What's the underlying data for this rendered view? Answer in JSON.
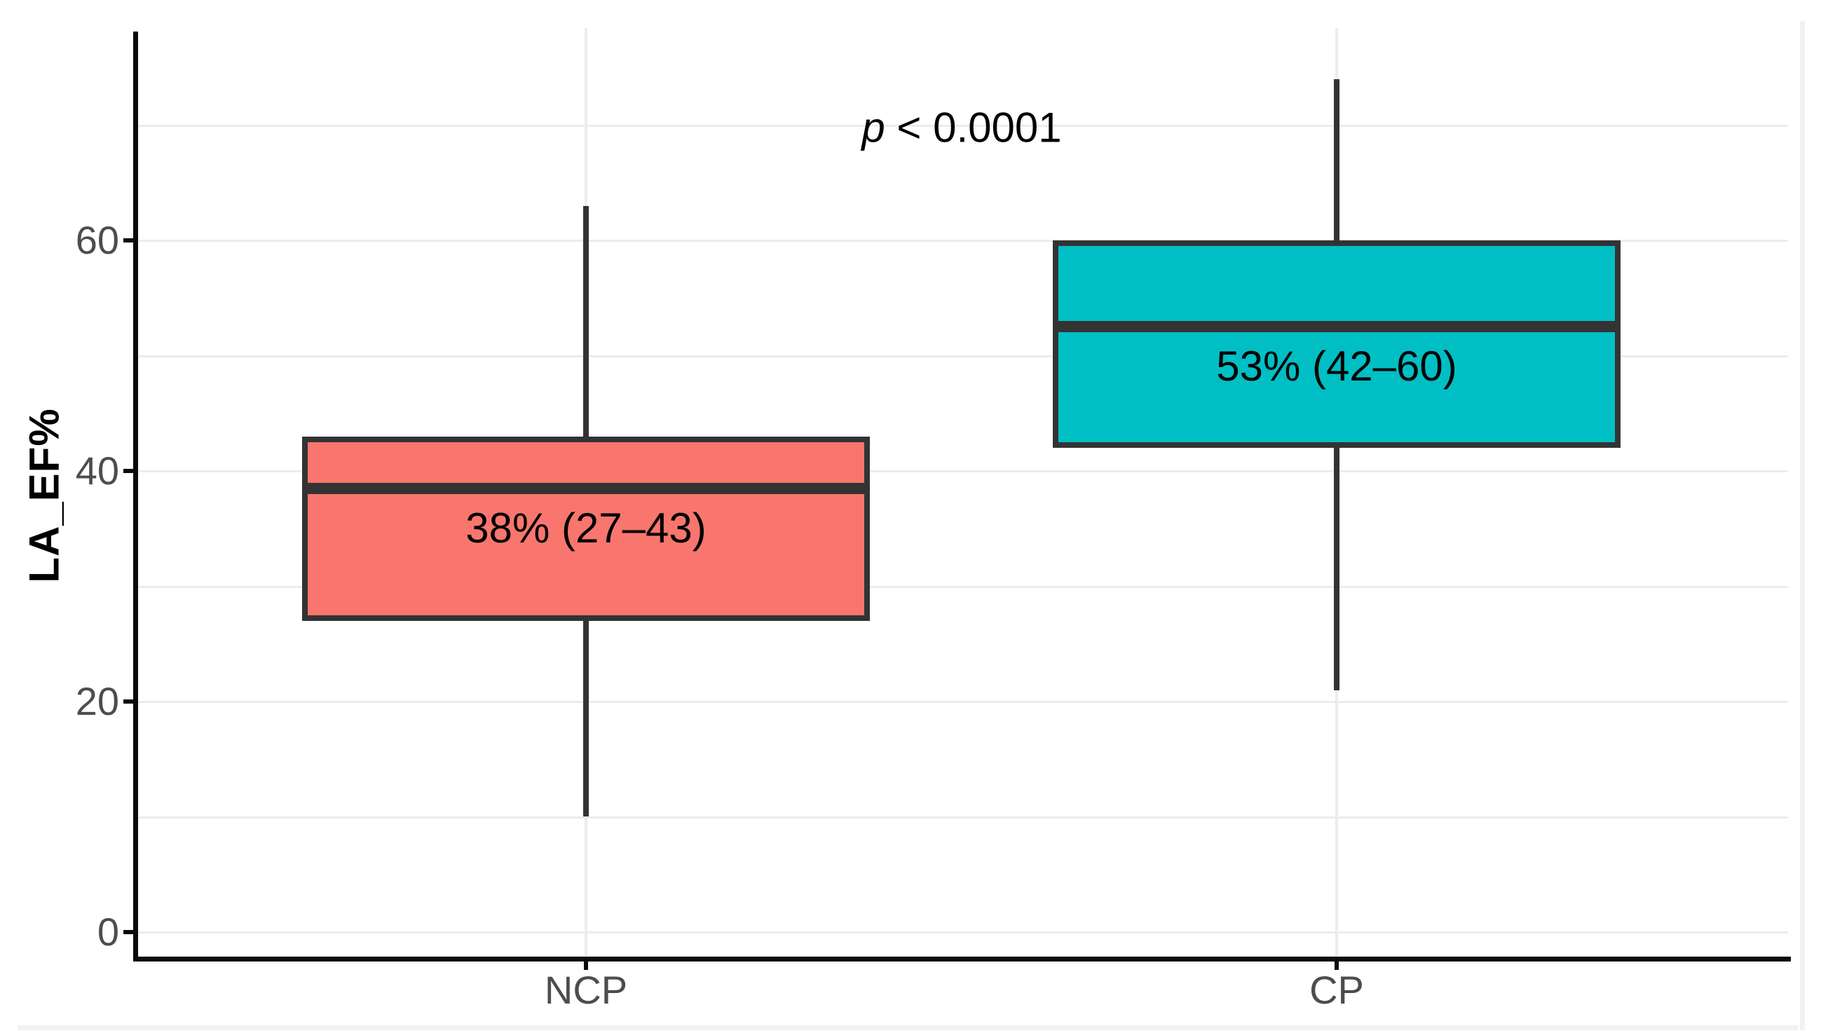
{
  "chart_data": {
    "type": "box",
    "title": "",
    "xlabel": "",
    "ylabel": "LA_EF%",
    "categories": [
      "NCP",
      "CP"
    ],
    "y_ticks": [
      0,
      20,
      40,
      60
    ],
    "y_gridlines": [
      0,
      10,
      20,
      30,
      40,
      50,
      60,
      70
    ],
    "ylim": [
      0,
      77
    ],
    "grid": "on",
    "legend": "none",
    "annotation": {
      "italic": "p",
      "rest": " < 0.0001"
    },
    "series": [
      {
        "name": "NCP",
        "label": "38% (27–43)",
        "fill": "#F8766D",
        "whisker_low": 10,
        "q1": 27,
        "median": 38.5,
        "q3": 43,
        "whisker_high": 63
      },
      {
        "name": "CP",
        "label": "53% (42–60)",
        "fill": "#00BFC4",
        "whisker_low": 21,
        "q1": 42,
        "median": 52.5,
        "q3": 60,
        "whisker_high": 74
      }
    ],
    "colors": {
      "stroke": "#333333",
      "grid": "#ECECEC",
      "axis_line": "#0B0B0B",
      "axis_text": "#4D4D4D",
      "label_text": "#000000"
    }
  }
}
